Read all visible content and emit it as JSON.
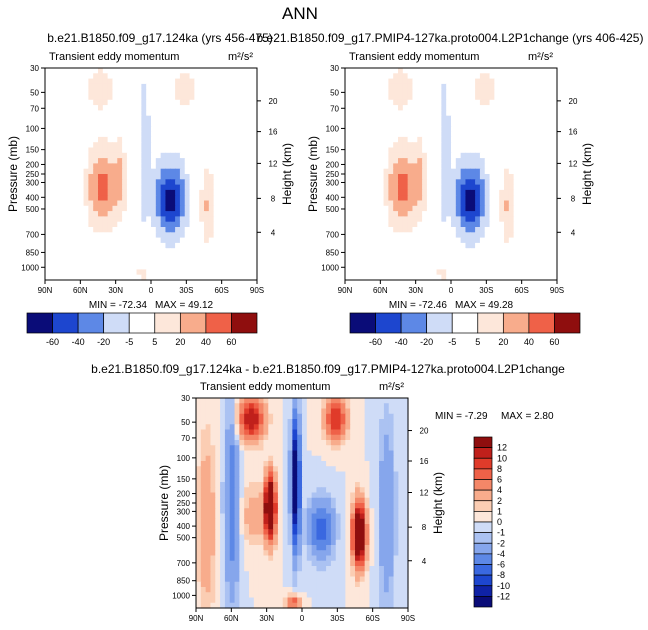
{
  "title": "ANN",
  "colors": {
    "neg": [
      "#0a0c78",
      "#0f22a6",
      "#1d46cf",
      "#3a68e0",
      "#5d88e6",
      "#86a6ec",
      "#abc2f2",
      "#cfdcf7"
    ],
    "pos": [
      "#fde7da",
      "#fbcdb3",
      "#f8ac8c",
      "#f48768",
      "#ef6148",
      "#e03b2a",
      "#c0201b",
      "#8f0e0e"
    ]
  },
  "chart_data": [
    {
      "type": "contour",
      "title": "b.e21.B1850.f09_g17.124ka (yrs 456-475)",
      "subtitle": "Transient eddy momentum",
      "units": "m²/s²",
      "ylabel": "Pressure (mb)",
      "ylabel_right": "Height (km)",
      "x_ticks": [
        "90N",
        "60N",
        "30N",
        "0",
        "30S",
        "60S",
        "90S"
      ],
      "y_ticks": [
        "30",
        "50",
        "70",
        "100",
        "150",
        "200",
        "250",
        "300",
        "400",
        "500",
        "700",
        "850",
        "1000"
      ],
      "y_ticks_right": [
        "20",
        "16",
        "12",
        "8",
        "4"
      ],
      "min_label": "MIN = -72.34",
      "max_label": "MAX = 49.12",
      "min": -72.34,
      "max": 49.12,
      "levels": [
        -60,
        -40,
        -20,
        -5,
        5,
        20,
        40,
        60
      ],
      "colorbar_labels": [
        "-60",
        "-40",
        "-20",
        "-5",
        "5",
        "20",
        "40",
        "60"
      ]
    },
    {
      "type": "contour",
      "title": "b.e21.B1850.f09_g17.PMIP4-127ka.proto004.L2P1change (yrs 406-425)",
      "subtitle": "Transient eddy momentum",
      "units": "m²/s²",
      "ylabel": "Pressure (mb)",
      "ylabel_right": "Height (km)",
      "x_ticks": [
        "90N",
        "60N",
        "30N",
        "0",
        "30S",
        "60S",
        "90S"
      ],
      "y_ticks": [
        "30",
        "50",
        "70",
        "100",
        "150",
        "200",
        "250",
        "300",
        "400",
        "500",
        "700",
        "850",
        "1000"
      ],
      "y_ticks_right": [
        "20",
        "16",
        "12",
        "8",
        "4"
      ],
      "min_label": "MIN = -72.46",
      "max_label": "MAX = 49.28",
      "min": -72.46,
      "max": 49.28,
      "levels": [
        -60,
        -40,
        -20,
        -5,
        5,
        20,
        40,
        60
      ],
      "colorbar_labels": [
        "-60",
        "-40",
        "-20",
        "-5",
        "5",
        "20",
        "40",
        "60"
      ]
    },
    {
      "type": "contour",
      "title": "b.e21.B1850.f09_g17.124ka - b.e21.B1850.f09_g17.PMIP4-127ka.proto004.L2P1change",
      "subtitle": "Transient eddy momentum",
      "units": "m²/s²",
      "ylabel": "Pressure (mb)",
      "ylabel_right": "Height (km)",
      "x_ticks": [
        "90N",
        "60N",
        "30N",
        "0",
        "30S",
        "60S",
        "90S"
      ],
      "y_ticks": [
        "30",
        "50",
        "70",
        "100",
        "150",
        "200",
        "250",
        "300",
        "400",
        "500",
        "700",
        "850",
        "1000"
      ],
      "y_ticks_right": [
        "20",
        "16",
        "12",
        "8",
        "4"
      ],
      "min_label": "MIN = -7.29",
      "max_label": "MAX =  2.80",
      "min": -7.29,
      "max": 2.8,
      "levels": [
        -12,
        -10,
        -8,
        -6,
        -4,
        -2,
        -1,
        0,
        1,
        2,
        4,
        6,
        8,
        10,
        12
      ],
      "colorbar_labels": [
        "12",
        "10",
        "8",
        "6",
        "4",
        "2",
        "1",
        "0",
        "-1",
        "-2",
        "-4",
        "-6",
        "-8",
        "-10",
        "-12"
      ]
    }
  ]
}
